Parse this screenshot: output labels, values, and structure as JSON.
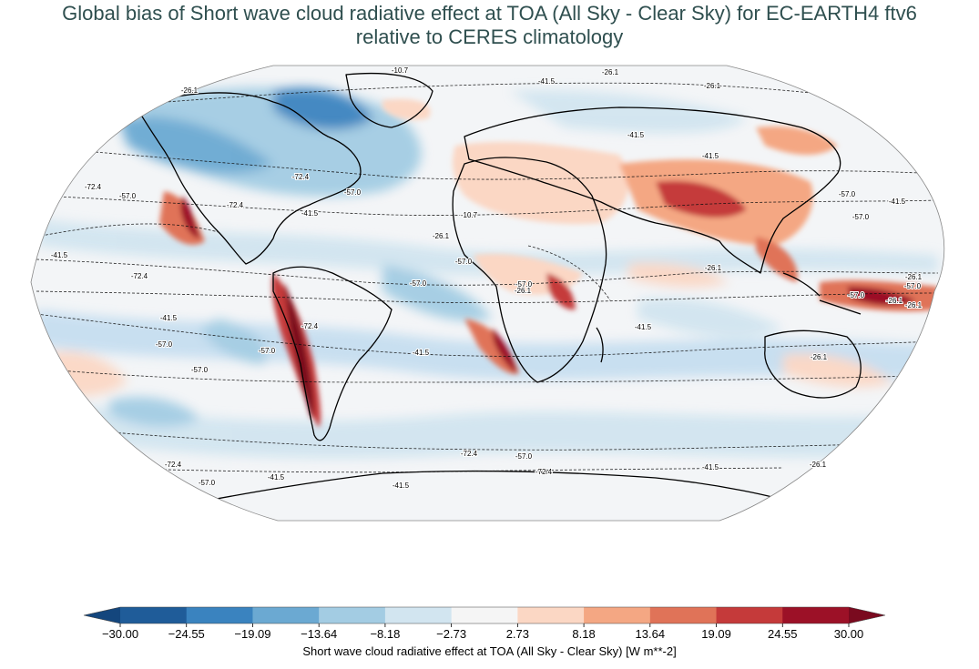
{
  "title": {
    "line1": "Global bias of Short wave cloud radiative effect at TOA (All Sky - Clear Sky) for EC-EARTH4 ftv6",
    "line2": "relative to CERES climatology"
  },
  "projection": "Robinson",
  "colorbar": {
    "label": "Short wave cloud radiative effect at TOA (All Sky - Clear Sky) [W m**-2]",
    "ticks": [
      "−30.00",
      "−24.55",
      "−19.09",
      "−13.64",
      "−8.18",
      "−2.73",
      "2.73",
      "8.18",
      "13.64",
      "19.09",
      "24.55",
      "30.00"
    ],
    "colors": [
      "#1f5c99",
      "#3a83bf",
      "#6ba9d2",
      "#a3cce3",
      "#d2e5f0",
      "#f5f5f5",
      "#fbd7c4",
      "#f4a783",
      "#e07358",
      "#c53a3a",
      "#9c1127"
    ],
    "extend_low_color": "#14467d",
    "extend_high_color": "#7a0a1f"
  },
  "contour_labels": [
    "-10.7",
    "-26.1",
    "-26.1",
    "-41.5",
    "-26.1",
    "-72.4",
    "-57.0",
    "-72.4",
    "-57.0",
    "-41.5",
    "-26.1",
    "-10.7",
    "-41.5",
    "-72.4",
    "-57.0",
    "-41.5",
    "-57.0",
    "-26.1",
    "-57.0",
    "-26.1",
    "-57.0",
    "-41.5",
    "-26.1",
    "-72.4",
    "-41.5",
    "-41.5",
    "-57.0",
    "-57.0",
    "-41.5",
    "-57.0",
    "-57.0",
    "-26.1",
    "-57.0",
    "-72.4",
    "-72.4",
    "-72.4",
    "-57.0",
    "-41.5",
    "-57.0",
    "-72.4",
    "-41.5",
    "-26.1",
    "-26.1",
    "-41.5",
    "-57.0",
    "-26.1",
    "-41.5"
  ]
}
